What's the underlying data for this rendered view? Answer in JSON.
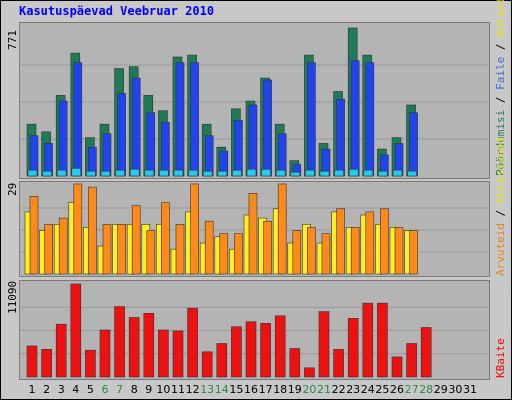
{
  "title": "Kasutuspäevad Veebruar 2010",
  "side_labels": {
    "top": [
      {
        "text": "Pöördumisi",
        "color": "#2e7d50"
      },
      {
        "text": "Faile",
        "color": "#3a6ad9"
      },
      {
        "text": "Külastused",
        "color": "#e0e020"
      },
      {
        "text": "Leheküljed",
        "color": "#1ab5e6"
      }
    ],
    "middle": [
      {
        "text": "Arvuteid",
        "color": "#e08a1a"
      },
      {
        "text": "Külastused",
        "color": "#e0e020"
      }
    ],
    "bottom": [
      {
        "text": "KBaite",
        "color": "#ff0000"
      }
    ],
    "separator": " / "
  },
  "colors": {
    "hits": "#1f7a55",
    "files": "#2244ee",
    "pages": "#22ccee",
    "visits": "#ffee22",
    "sites": "#ff8a1a",
    "kbytes": "#ee1111",
    "weekend": "#2a8a4a",
    "weekday": "#000000"
  },
  "chart_data": [
    {
      "type": "bar",
      "ylabel_max": "771",
      "ymax": 771,
      "categories": [
        "1",
        "2",
        "3",
        "4",
        "5",
        "6",
        "7",
        "8",
        "9",
        "10",
        "11",
        "12",
        "13",
        "14",
        "15",
        "16",
        "17",
        "18",
        "19",
        "20",
        "21",
        "22",
        "23",
        "24",
        "25",
        "26",
        "27",
        "28",
        "29",
        "30",
        "31"
      ],
      "weekend_days": [
        "6",
        "7",
        "13",
        "14",
        "20",
        "21",
        "27",
        "28"
      ],
      "series": [
        {
          "name": "Pöördumisi",
          "values": [
            270,
            230,
            420,
            640,
            200,
            270,
            560,
            570,
            420,
            340,
            620,
            630,
            270,
            150,
            350,
            390,
            510,
            270,
            80,
            630,
            170,
            440,
            771,
            630,
            140,
            200,
            370,
            0,
            0,
            0,
            0
          ]
        },
        {
          "name": "Faile",
          "values": [
            210,
            170,
            390,
            590,
            150,
            220,
            430,
            510,
            330,
            280,
            590,
            590,
            210,
            130,
            290,
            370,
            500,
            220,
            60,
            590,
            140,
            400,
            600,
            590,
            110,
            170,
            330,
            0,
            0,
            0,
            0
          ]
        },
        {
          "name": "Leheküljed",
          "values": [
            30,
            25,
            30,
            40,
            25,
            25,
            30,
            35,
            30,
            30,
            30,
            30,
            25,
            25,
            30,
            35,
            35,
            30,
            20,
            30,
            25,
            30,
            35,
            30,
            25,
            30,
            25,
            0,
            0,
            0,
            0
          ]
        }
      ]
    },
    {
      "type": "bar",
      "ylabel_max": "29",
      "ymax": 29,
      "categories": [
        "1",
        "2",
        "3",
        "4",
        "5",
        "6",
        "7",
        "8",
        "9",
        "10",
        "11",
        "12",
        "13",
        "14",
        "15",
        "16",
        "17",
        "18",
        "19",
        "20",
        "21",
        "22",
        "23",
        "24",
        "25",
        "26",
        "27",
        "28",
        "29",
        "30",
        "31"
      ],
      "series": [
        {
          "name": "Külastused",
          "values": [
            20,
            14,
            16,
            23,
            15,
            9,
            16,
            16,
            16,
            16,
            8,
            20,
            10,
            12,
            8,
            19,
            18,
            21,
            10,
            16,
            10,
            20,
            15,
            19,
            16,
            15,
            14,
            0,
            0,
            0,
            0
          ]
        },
        {
          "name": "Arvuteid",
          "values": [
            25,
            16,
            18,
            29,
            28,
            16,
            16,
            22,
            14,
            23,
            16,
            29,
            17,
            13,
            13,
            26,
            17,
            29,
            14,
            15,
            13,
            21,
            15,
            20,
            21,
            15,
            14,
            0,
            0,
            0,
            0
          ]
        }
      ]
    },
    {
      "type": "bar",
      "ylabel_max": "11090",
      "ymax": 11090,
      "categories": [
        "1",
        "2",
        "3",
        "4",
        "5",
        "6",
        "7",
        "8",
        "9",
        "10",
        "11",
        "12",
        "13",
        "14",
        "15",
        "16",
        "17",
        "18",
        "19",
        "20",
        "21",
        "22",
        "23",
        "24",
        "25",
        "26",
        "27",
        "28",
        "29",
        "30",
        "31"
      ],
      "series": [
        {
          "name": "KBaite",
          "values": [
            3700,
            3300,
            6300,
            11090,
            3200,
            5600,
            8400,
            7100,
            7600,
            5600,
            5500,
            8200,
            3000,
            4000,
            6000,
            6600,
            6400,
            7300,
            3400,
            1100,
            7800,
            3300,
            7000,
            8800,
            8800,
            2400,
            4000,
            5900,
            0,
            0,
            0
          ]
        }
      ]
    }
  ]
}
